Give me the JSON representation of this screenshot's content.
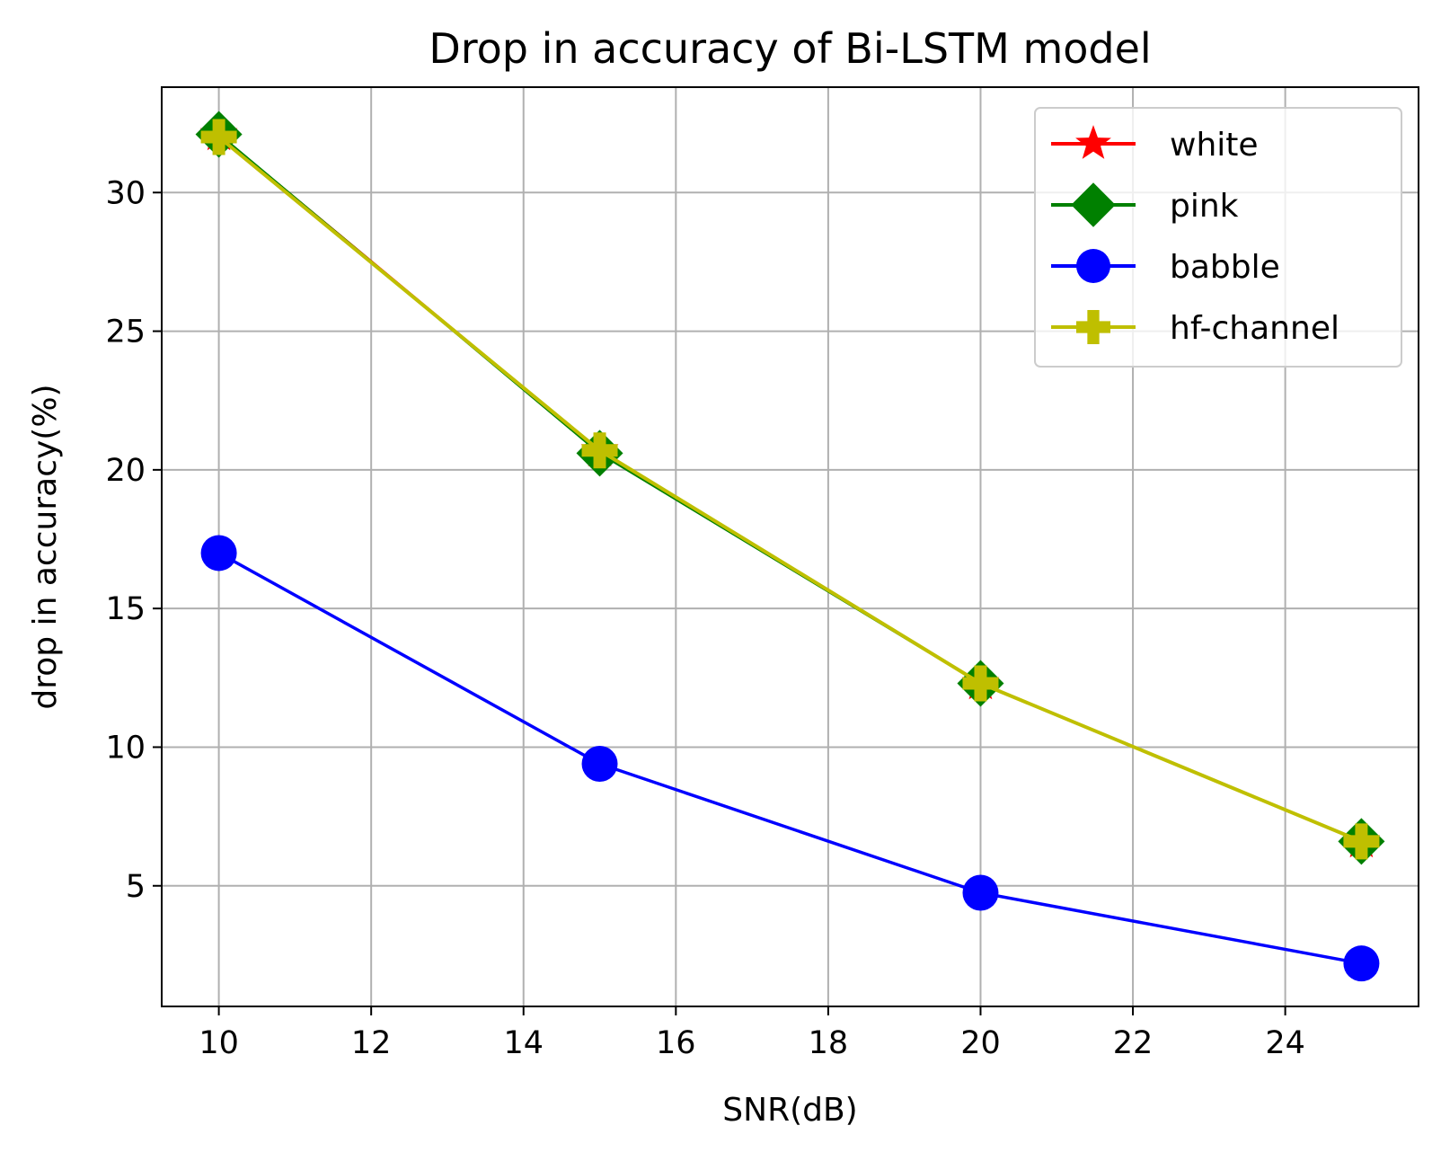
{
  "chart_data": {
    "type": "line",
    "title": "Drop in accuracy of Bi-LSTM model",
    "xlabel": "SNR(dB)",
    "ylabel": "drop in accuracy(%)",
    "xlim": [
      9.25,
      25.75
    ],
    "ylim": [
      0.65,
      33.8
    ],
    "xticks": [
      10,
      12,
      14,
      16,
      18,
      20,
      22,
      24
    ],
    "yticks": [
      5,
      10,
      15,
      20,
      25,
      30
    ],
    "grid": true,
    "legend_position": "top-right",
    "x": [
      10,
      15,
      20,
      25
    ],
    "series": [
      {
        "name": "white",
        "color": "#ff0000",
        "marker": "star",
        "values": [
          32.1,
          20.7,
          12.3,
          6.6
        ]
      },
      {
        "name": "pink",
        "color": "#008000",
        "marker": "diamond",
        "values": [
          32.1,
          20.6,
          12.3,
          6.6
        ]
      },
      {
        "name": "babble",
        "color": "#0000ff",
        "marker": "circle",
        "values": [
          17.0,
          9.4,
          4.75,
          2.2
        ]
      },
      {
        "name": "hf-channel",
        "color": "#bfbf00",
        "marker": "plus",
        "values": [
          32.0,
          20.7,
          12.3,
          6.6
        ]
      }
    ]
  }
}
